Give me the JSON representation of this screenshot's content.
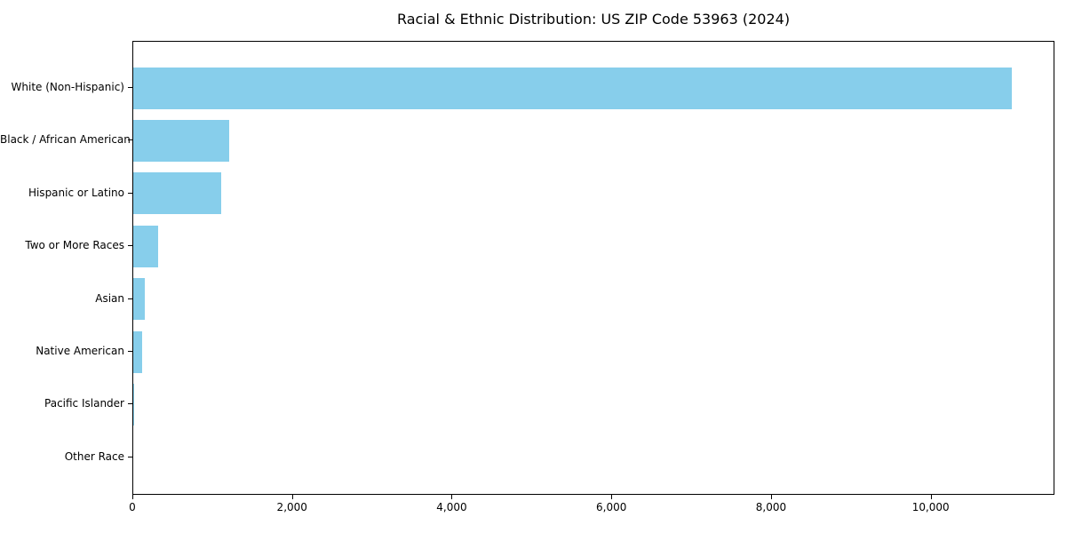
{
  "chart_data": {
    "type": "bar",
    "orientation": "horizontal",
    "title": "Racial & Ethnic Distribution: US ZIP Code 53963 (2024)",
    "categories": [
      "White (Non-Hispanic)",
      "Black / African American",
      "Hispanic or Latino",
      "Two or More Races",
      "Asian",
      "Native American",
      "Pacific Islander",
      "Other Race"
    ],
    "values": [
      11000,
      1200,
      1100,
      315,
      140,
      115,
      10,
      0
    ],
    "xlabel": "",
    "ylabel": "",
    "xlim": [
      0,
      11550
    ],
    "xticks": [
      0,
      2000,
      4000,
      6000,
      8000,
      10000
    ],
    "xtick_labels": [
      "0",
      "2,000",
      "4,000",
      "6,000",
      "8,000",
      "10,000"
    ],
    "bar_color": "#87CEEB",
    "background_color": "#ffffff",
    "axis_color": "#000000",
    "grid": false,
    "legend": "none"
  }
}
